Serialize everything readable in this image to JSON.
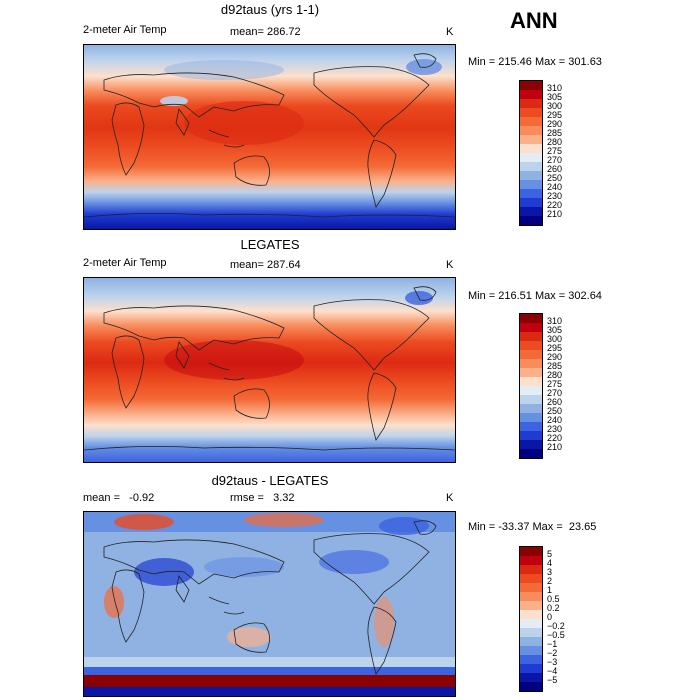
{
  "annual_label": "ANN",
  "panels": [
    {
      "title": "d92taus (yrs 1-1)",
      "left_label": "2-meter Air Temp",
      "stat_label": "mean= 286.72",
      "units": "K",
      "minmax": "Min = 215.46 Max = 301.63",
      "colorbar_labels": [
        "310",
        "305",
        "300",
        "295",
        "290",
        "285",
        "280",
        "275",
        "270",
        "260",
        "250",
        "240",
        "230",
        "220",
        "210"
      ]
    },
    {
      "title": "LEGATES",
      "left_label": "2-meter Air Temp",
      "stat_label": "mean= 287.64",
      "units": "K",
      "minmax": "Min = 216.51 Max = 302.64",
      "colorbar_labels": [
        "310",
        "305",
        "300",
        "295",
        "290",
        "285",
        "280",
        "275",
        "270",
        "260",
        "250",
        "240",
        "230",
        "220",
        "210"
      ]
    },
    {
      "title": "d92taus - LEGATES",
      "left_label": "mean =   -0.92",
      "stat_label": "rmse =   3.32",
      "units": "K",
      "minmax": "Min = -33.37 Max =  23.65",
      "colorbar_labels": [
        "5",
        "4",
        "3",
        "2",
        "1",
        "0.5",
        "0.2",
        "0",
        "−0.2",
        "−0.5",
        "−1",
        "−2",
        "−3",
        "−4",
        "−5"
      ]
    }
  ],
  "colors": {
    "temp_scale": [
      "#8b0000",
      "#c00010",
      "#dc2a12",
      "#ec4a20",
      "#f46a36",
      "#f88c5c",
      "#fbb08a",
      "#fde0cc",
      "#e4edf6",
      "#bcd3ec",
      "#8fb2e3",
      "#6690e2",
      "#3c63e0",
      "#1f3cd2",
      "#0a16a6",
      "#000080"
    ],
    "diff_scale": [
      "#8b0000",
      "#c00010",
      "#dc2a12",
      "#ec4a20",
      "#f46a36",
      "#f88c5c",
      "#fbb08a",
      "#fde0cc",
      "#e4edf6",
      "#bcd3ec",
      "#8fb2e3",
      "#6690e2",
      "#3c63e0",
      "#1f3cd2",
      "#0a16a6",
      "#000080"
    ]
  }
}
